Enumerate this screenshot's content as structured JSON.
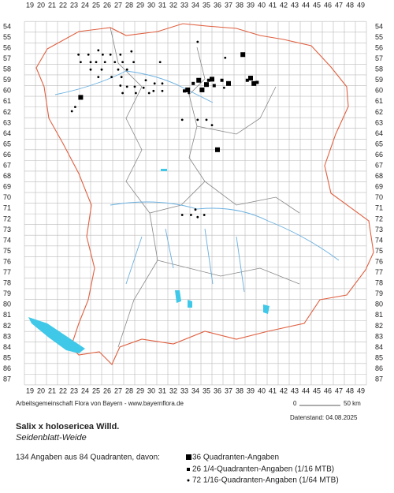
{
  "map": {
    "x_labels": [
      19,
      20,
      21,
      22,
      23,
      24,
      25,
      26,
      27,
      28,
      29,
      30,
      31,
      32,
      33,
      34,
      35,
      36,
      37,
      38,
      39,
      40,
      41,
      42,
      43,
      44,
      45,
      46,
      47,
      48,
      49
    ],
    "y_labels": [
      54,
      55,
      56,
      57,
      58,
      59,
      60,
      61,
      62,
      63,
      64,
      65,
      66,
      67,
      68,
      69,
      70,
      71,
      72,
      73,
      74,
      75,
      76,
      77,
      78,
      79,
      80,
      81,
      82,
      83,
      84,
      85,
      86,
      87
    ],
    "credit": "Arbeitsgemeinschaft Flora von Bayern - www.bayernflora.de",
    "scale_start": "0",
    "scale_end": "50 km",
    "date": "Datenstand: 04.08.2025",
    "title": "Salix x holosericea Willd.",
    "subtitle": "Seidenblatt-Weide",
    "summary": "134 Angaben aus 84 Quadranten, davon:",
    "legend": [
      "36 Quadranten-Angaben",
      "26 1/4-Quadranten-Angaben (1/16 MTB)",
      "72 1/16-Quadranten-Angaben (1/64 MTB)"
    ]
  }
}
